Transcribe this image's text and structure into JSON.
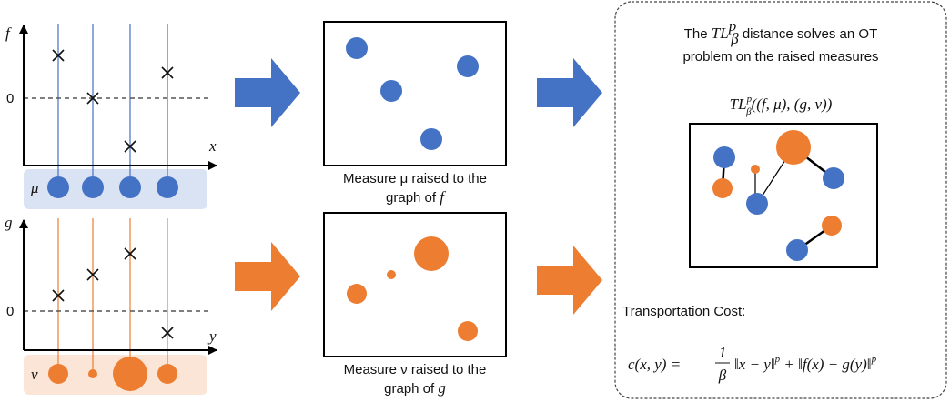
{
  "left_top": {
    "y_axis_label": "f",
    "x_axis_label": "x",
    "zero_label": "0",
    "measure_label": "μ"
  },
  "left_bottom": {
    "y_axis_label": "g",
    "x_axis_label": "y",
    "zero_label": "0",
    "measure_label": "ν"
  },
  "middle_top": {
    "caption_line1": "Measure μ raised to the",
    "caption_line2_prefix": "graph of ",
    "caption_line2_var": "f"
  },
  "middle_bottom": {
    "caption_line1": "Measure ν raised to the",
    "caption_line2_prefix": "graph of ",
    "caption_line2_var": "g"
  },
  "right": {
    "title_line1_prefix": "The ",
    "title_line1_symbol": "TL",
    "title_line1_sup": "p",
    "title_line1_sub": "β",
    "title_line1_suffix": " distance solves an OT",
    "title_line2": "problem on the raised measures",
    "formula_symbol": "TL",
    "formula_sup": "p",
    "formula_sub": "β",
    "formula_args": "((f, μ), (g, ν))",
    "cost_label": "Transportation Cost:",
    "cost_lhs": "c(x, y) = ",
    "cost_frac_num": "1",
    "cost_frac_den": "β",
    "cost_rhs": "‖x − y‖",
    "cost_p1": "p",
    "cost_plus": " + ‖f(x) − g(y)‖",
    "cost_p2": "p"
  },
  "colors": {
    "blue": "#4472c4",
    "orange": "#ed7d31",
    "blue_band": "#dae3f3",
    "orange_band": "#fbe5d6"
  }
}
